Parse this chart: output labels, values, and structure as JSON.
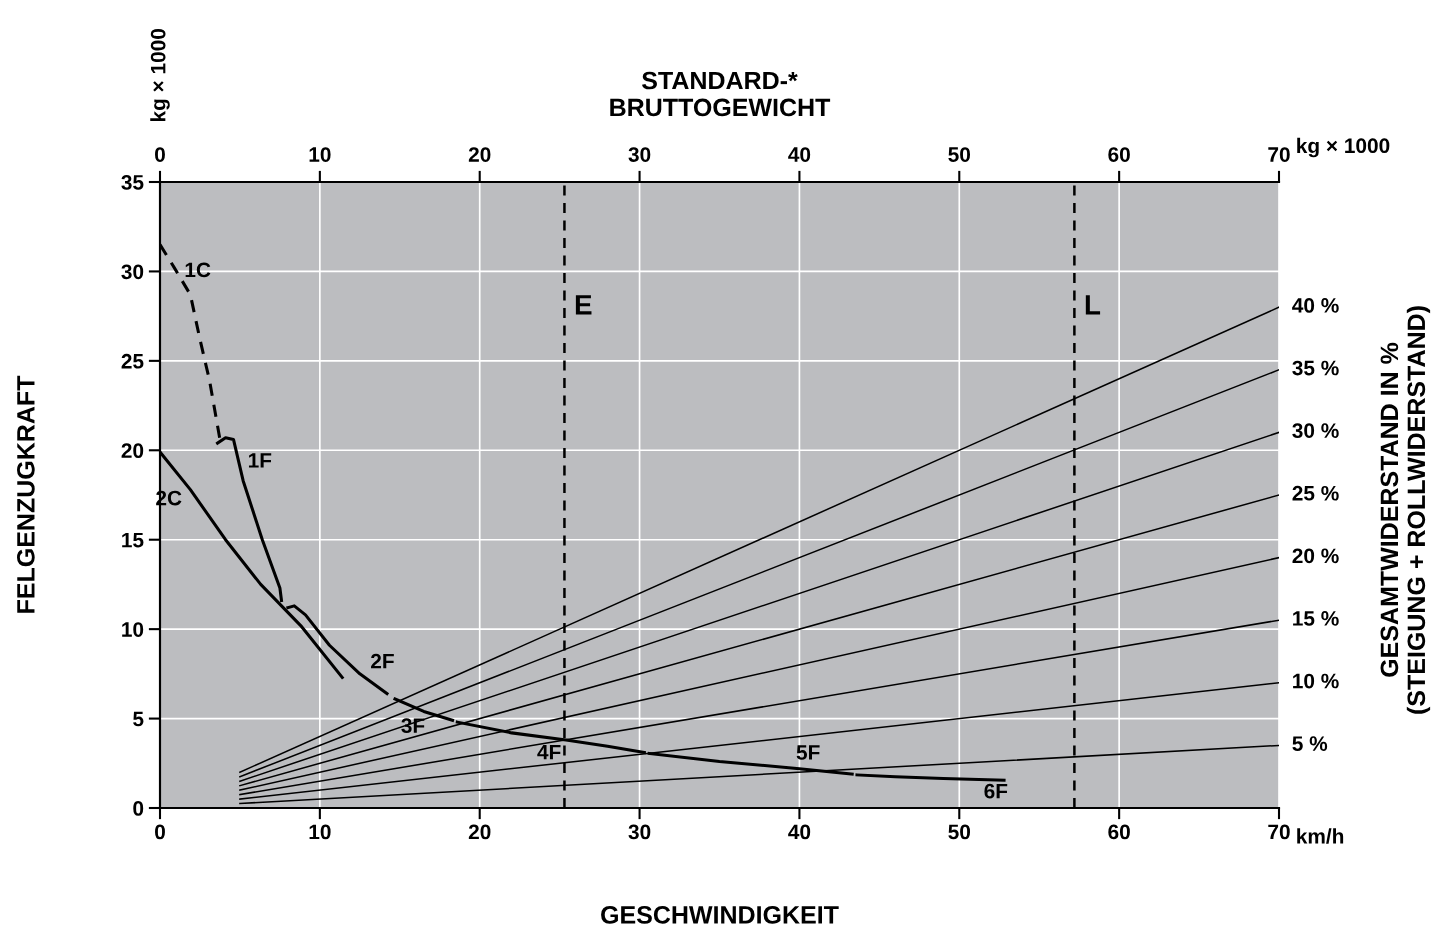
{
  "chart_data": {
    "type": "line",
    "x2label": "STANDARD-*\nBRUTTOGEWICHT",
    "xlabel": "GESCHWINDIGKEIT",
    "ylabel": "FELGENZUGKRAFT",
    "y2label": "GESAMTWIDERSTAND IN %\n(STEIGUNG + ROLLWIDERSTAND)",
    "xlim": [
      0,
      70
    ],
    "xticks": [
      0,
      10,
      20,
      30,
      40,
      50,
      60,
      70
    ],
    "x2lim": [
      0,
      70
    ],
    "x2ticks": [
      0,
      10,
      20,
      30,
      40,
      50,
      60,
      70
    ],
    "ylim": [
      0,
      35
    ],
    "yticks": [
      0,
      5,
      10,
      15,
      20,
      25,
      30,
      35
    ],
    "grid": true,
    "marker": "none",
    "series": [
      {
        "name": "1C",
        "x": [
          0,
          0.9,
          1.9,
          2.5,
          3.1,
          3.75
        ],
        "values": [
          31.5,
          30.2,
          28.7,
          26.2,
          23.9,
          20.6
        ],
        "color": "#000000",
        "line_style": "dashed"
      },
      {
        "name": "1F",
        "x": [
          3.6,
          4.1,
          4.6,
          5.2,
          6.4,
          7.5,
          7.6
        ],
        "values": [
          20.4,
          20.7,
          20.6,
          18.3,
          15.0,
          12.3,
          11.6
        ],
        "color": "#000000",
        "line_style": "solid"
      },
      {
        "name": "2C",
        "x": [
          0,
          1.9,
          4.1,
          6.3,
          8.8,
          11.4
        ],
        "values": [
          19.9,
          17.8,
          15.0,
          12.5,
          10.2,
          7.3
        ],
        "color": "#000000",
        "line_style": "solid"
      },
      {
        "name": "2F",
        "x": [
          8.0,
          8.4,
          9.1,
          10.6,
          12.5,
          14.2
        ],
        "values": [
          11.2,
          11.3,
          10.8,
          9.1,
          7.5,
          6.4
        ],
        "color": "#000000",
        "line_style": "solid"
      },
      {
        "name": "3F",
        "x": [
          14.7,
          16.5,
          18.3
        ],
        "values": [
          6.1,
          5.4,
          4.9
        ],
        "color": "#000000",
        "line_style": "solid"
      },
      {
        "name": "4F",
        "x": [
          18.6,
          22,
          25.4,
          28,
          30.3
        ],
        "values": [
          4.8,
          4.2,
          3.8,
          3.45,
          3.1
        ],
        "color": "#000000",
        "line_style": "solid"
      },
      {
        "name": "5F",
        "x": [
          30.6,
          35,
          40,
          43.3
        ],
        "values": [
          3.05,
          2.6,
          2.2,
          1.9
        ],
        "color": "#000000",
        "line_style": "solid"
      },
      {
        "name": "6F",
        "x": [
          43.6,
          46,
          49,
          52.8
        ],
        "values": [
          1.85,
          1.75,
          1.65,
          1.55
        ],
        "color": "#000000",
        "line_style": "solid"
      },
      {
        "name": "5 %",
        "x": [
          5,
          70
        ],
        "values": [
          0.25,
          3.5
        ],
        "color": "#000000",
        "line_style": "solid"
      },
      {
        "name": "10 %",
        "x": [
          5,
          70
        ],
        "values": [
          0.5,
          7
        ],
        "color": "#000000",
        "line_style": "solid"
      },
      {
        "name": "15 %",
        "x": [
          5,
          70
        ],
        "values": [
          0.75,
          10.5
        ],
        "color": "#000000",
        "line_style": "solid"
      },
      {
        "name": "20 %",
        "x": [
          5,
          70
        ],
        "values": [
          1,
          14
        ],
        "color": "#000000",
        "line_style": "solid"
      },
      {
        "name": "25 %",
        "x": [
          5,
          70
        ],
        "values": [
          1.25,
          17.5
        ],
        "color": "#000000",
        "line_style": "solid"
      },
      {
        "name": "30 %",
        "x": [
          5,
          70
        ],
        "values": [
          1.5,
          21
        ],
        "color": "#000000",
        "line_style": "solid"
      },
      {
        "name": "35 %",
        "x": [
          5,
          70
        ],
        "values": [
          1.75,
          24.5
        ],
        "color": "#000000",
        "line_style": "solid"
      },
      {
        "name": "40 %",
        "x": [
          5,
          70
        ],
        "values": [
          2,
          28
        ],
        "color": "#000000",
        "line_style": "solid"
      }
    ],
    "ref_lines": [
      {
        "axis": "x",
        "value": 25.3,
        "label": "E",
        "color": "#000000",
        "line_style": "dashed"
      },
      {
        "axis": "x",
        "value": 57.2,
        "label": "L",
        "color": "#000000",
        "line_style": "dashed"
      }
    ],
    "annotations": [
      "kg × 1000",
      "kg × 1000",
      "km/h"
    ]
  }
}
